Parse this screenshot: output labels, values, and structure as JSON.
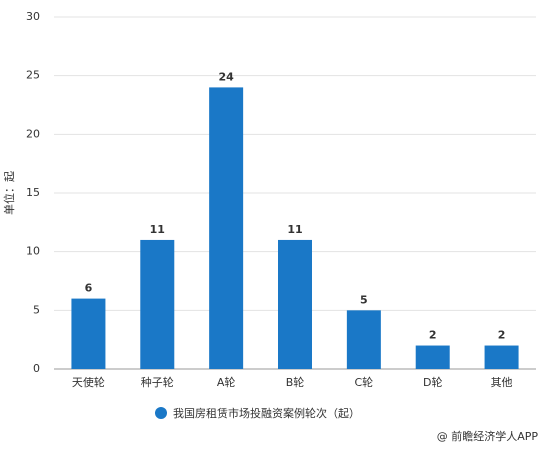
{
  "chart_data": {
    "type": "bar",
    "y_axis_label": "单位：起",
    "categories": [
      "天使轮",
      "种子轮",
      "A轮",
      "B轮",
      "C轮",
      "D轮",
      "其他"
    ],
    "series": [
      {
        "name": "我国房租赁市场投融资案例轮次（起）",
        "color": "#1a78c7",
        "values": [
          6,
          11,
          24,
          11,
          5,
          2,
          2
        ]
      }
    ],
    "ylim": [
      0,
      30
    ],
    "yticks": [
      0,
      5,
      10,
      15,
      20,
      25,
      30
    ],
    "grid": true,
    "source": "@ 前瞻经济学人APP"
  }
}
